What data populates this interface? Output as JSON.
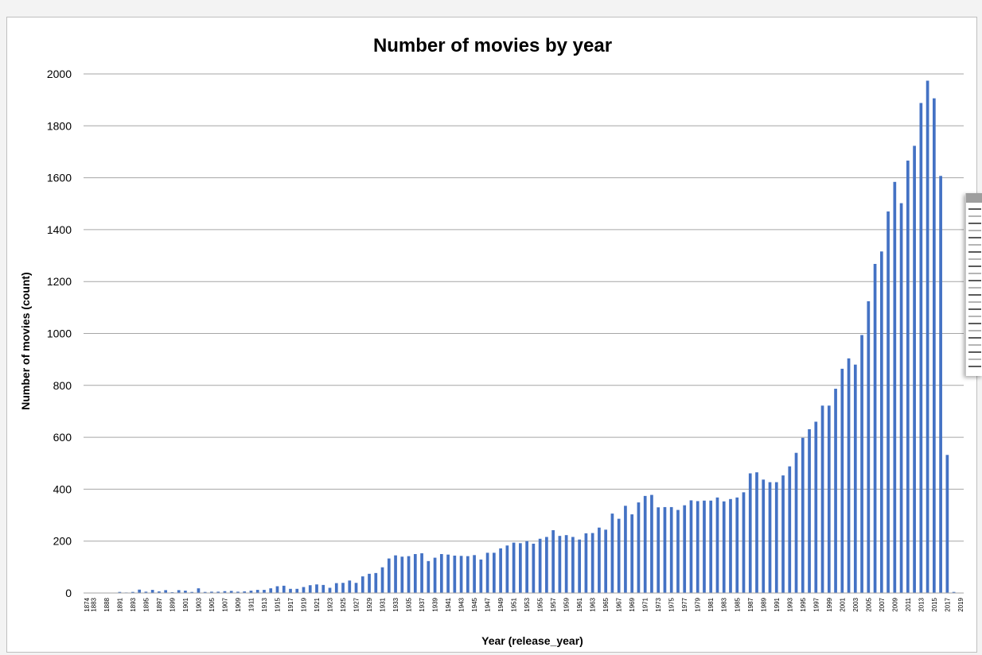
{
  "chart_data": {
    "type": "bar",
    "title": "Number of movies by year",
    "xlabel": "Year (release_year)",
    "ylabel": "Number of movies (count)",
    "ylim": [
      0,
      2000
    ],
    "yticks": [
      0,
      200,
      400,
      600,
      800,
      1000,
      1200,
      1400,
      1600,
      1800,
      2000
    ],
    "grid": true,
    "bar_color": "#4472c4",
    "categories": [
      "1874",
      "1883",
      "1887",
      "1888",
      "1890",
      "1891",
      "1892",
      "1893",
      "1894",
      "1895",
      "1896",
      "1897",
      "1898",
      "1899",
      "1900",
      "1901",
      "1902",
      "1903",
      "1904",
      "1905",
      "1906",
      "1907",
      "1908",
      "1909",
      "1910",
      "1911",
      "1912",
      "1913",
      "1914",
      "1915",
      "1916",
      "1917",
      "1918",
      "1919",
      "1920",
      "1921",
      "1922",
      "1923",
      "1924",
      "1925",
      "1926",
      "1927",
      "1928",
      "1929",
      "1930",
      "1931",
      "1932",
      "1933",
      "1934",
      "1935",
      "1936",
      "1937",
      "1938",
      "1939",
      "1940",
      "1941",
      "1942",
      "1943",
      "1944",
      "1945",
      "1946",
      "1947",
      "1948",
      "1949",
      "1950",
      "1951",
      "1952",
      "1953",
      "1954",
      "1955",
      "1956",
      "1957",
      "1958",
      "1959",
      "1960",
      "1961",
      "1962",
      "1963",
      "1964",
      "1965",
      "1966",
      "1967",
      "1968",
      "1969",
      "1970",
      "1971",
      "1972",
      "1973",
      "1974",
      "1975",
      "1976",
      "1977",
      "1978",
      "1979",
      "1980",
      "1981",
      "1982",
      "1983",
      "1984",
      "1985",
      "1986",
      "1987",
      "1988",
      "1989",
      "1990",
      "1991",
      "1992",
      "1993",
      "1994",
      "1995",
      "1996",
      "1997",
      "1998",
      "1999",
      "2000",
      "2001",
      "2002",
      "2003",
      "2004",
      "2005",
      "2006",
      "2007",
      "2008",
      "2009",
      "2010",
      "2011",
      "2012",
      "2013",
      "2014",
      "2015",
      "2016",
      "2017",
      "2018",
      "2019"
    ],
    "values": [
      1,
      1,
      1,
      1,
      1,
      4,
      2,
      4,
      13,
      5,
      12,
      6,
      11,
      3,
      11,
      9,
      4,
      18,
      4,
      5,
      5,
      7,
      8,
      5,
      6,
      9,
      12,
      12,
      18,
      26,
      28,
      16,
      16,
      23,
      30,
      33,
      31,
      20,
      38,
      39,
      48,
      39,
      64,
      74,
      77,
      99,
      133,
      145,
      140,
      142,
      150,
      153,
      123,
      136,
      150,
      148,
      144,
      143,
      142,
      146,
      129,
      155,
      155,
      172,
      183,
      194,
      192,
      200,
      190,
      209,
      216,
      242,
      220,
      223,
      216,
      206,
      230,
      231,
      252,
      244,
      306,
      286,
      336,
      303,
      349,
      374,
      378,
      330,
      331,
      331,
      320,
      338,
      357,
      354,
      356,
      356,
      368,
      353,
      362,
      368,
      388,
      461,
      465,
      437,
      427,
      427,
      453,
      488,
      540,
      598,
      631,
      660,
      722,
      722,
      787,
      864,
      904,
      880,
      994,
      1124,
      1268,
      1316,
      1470,
      1584,
      1502,
      1666,
      1723,
      1888,
      1974,
      1906,
      1607,
      532,
      4,
      1
    ],
    "x_tick_labels": [
      "1874",
      "1883",
      "1888",
      "1891",
      "1893",
      "1895",
      "1897",
      "1899",
      "1901",
      "1903",
      "1905",
      "1907",
      "1909",
      "1911",
      "1913",
      "1915",
      "1917",
      "1919",
      "1921",
      "1923",
      "1925",
      "1927",
      "1929",
      "1931",
      "1933",
      "1935",
      "1937",
      "1939",
      "1941",
      "1943",
      "1945",
      "1947",
      "1949",
      "1951",
      "1953",
      "1955",
      "1957",
      "1959",
      "1961",
      "1963",
      "1965",
      "1967",
      "1969",
      "1971",
      "1973",
      "1975",
      "1977",
      "1979",
      "1981",
      "1983",
      "1985",
      "1987",
      "1989",
      "1991",
      "1993",
      "1995",
      "1997",
      "1999",
      "2001",
      "2003",
      "2005",
      "2007",
      "2009",
      "2011",
      "2013",
      "2015",
      "2017",
      "2019"
    ]
  },
  "side_panel": {
    "icon": "excel-format-pane-icon"
  }
}
